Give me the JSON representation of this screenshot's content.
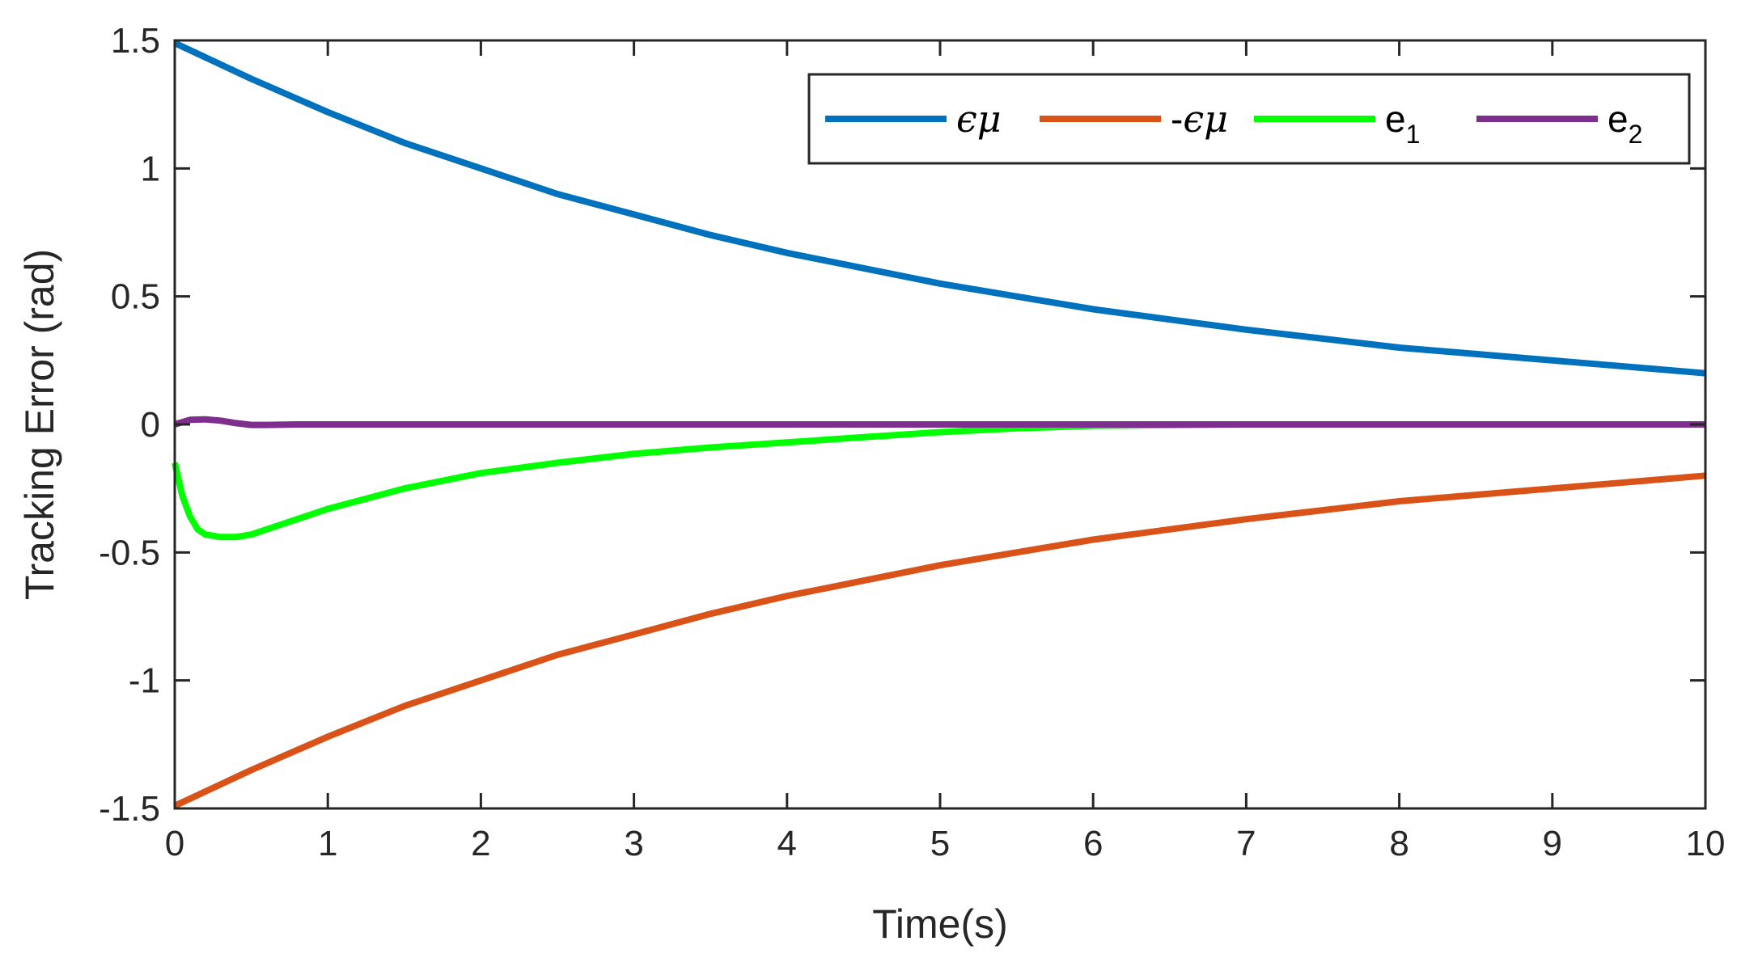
{
  "chart_data": {
    "type": "line",
    "title": "",
    "xlabel": "Time(s)",
    "ylabel": "Tracking Error (rad)",
    "xlim": [
      0,
      10
    ],
    "ylim": [
      -1.5,
      1.5
    ],
    "grid": false,
    "legend_position": "top-right",
    "x_ticks": [
      "0",
      "1",
      "2",
      "3",
      "4",
      "5",
      "6",
      "7",
      "8",
      "9",
      "10"
    ],
    "y_ticks": [
      "1.5",
      "1",
      "0.5",
      "0",
      "-0.5",
      "-1",
      "-1.5"
    ],
    "series": [
      {
        "name": "ϵμ",
        "label_symbol": "ϵμ",
        "label_prefix": "",
        "label_sub": "",
        "color": "#0072BD",
        "x": [
          0,
          0.5,
          1,
          1.5,
          2,
          2.5,
          3,
          3.5,
          4,
          4.5,
          5,
          5.5,
          6,
          6.5,
          7,
          7.5,
          8,
          8.5,
          9,
          9.5,
          10
        ],
        "y": [
          1.49,
          1.35,
          1.22,
          1.1,
          1.0,
          0.9,
          0.82,
          0.74,
          0.67,
          0.61,
          0.55,
          0.5,
          0.45,
          0.41,
          0.37,
          0.335,
          0.3,
          0.275,
          0.25,
          0.225,
          0.2
        ]
      },
      {
        "name": "-ϵμ",
        "label_symbol": "ϵμ",
        "label_prefix": "-",
        "label_sub": "",
        "color": "#D95319",
        "x": [
          0,
          0.5,
          1,
          1.5,
          2,
          2.5,
          3,
          3.5,
          4,
          4.5,
          5,
          5.5,
          6,
          6.5,
          7,
          7.5,
          8,
          8.5,
          9,
          9.5,
          10
        ],
        "y": [
          -1.49,
          -1.35,
          -1.22,
          -1.1,
          -1.0,
          -0.9,
          -0.82,
          -0.74,
          -0.67,
          -0.61,
          -0.55,
          -0.5,
          -0.45,
          -0.41,
          -0.37,
          -0.335,
          -0.3,
          -0.275,
          -0.25,
          -0.225,
          -0.2
        ]
      },
      {
        "name": "e1",
        "label_symbol": "",
        "label_prefix": "e",
        "label_sub": "1",
        "color": "#00FF00",
        "x": [
          0,
          0.05,
          0.1,
          0.15,
          0.2,
          0.3,
          0.4,
          0.5,
          0.7,
          1,
          1.5,
          2,
          2.5,
          3,
          3.5,
          4,
          4.5,
          5,
          5.5,
          6,
          7,
          8,
          9,
          10
        ],
        "y": [
          -0.15,
          -0.28,
          -0.36,
          -0.41,
          -0.43,
          -0.44,
          -0.44,
          -0.43,
          -0.39,
          -0.33,
          -0.25,
          -0.19,
          -0.15,
          -0.115,
          -0.09,
          -0.07,
          -0.05,
          -0.03,
          -0.015,
          -0.005,
          0.0,
          0.0,
          0.0,
          0.0
        ]
      },
      {
        "name": "e2",
        "label_symbol": "",
        "label_prefix": "e",
        "label_sub": "2",
        "color": "#7E2F8E",
        "x": [
          0,
          0.1,
          0.2,
          0.3,
          0.4,
          0.5,
          0.6,
          0.8,
          1,
          2,
          3,
          4,
          5,
          6,
          7,
          8,
          9,
          10
        ],
        "y": [
          0.0,
          0.018,
          0.02,
          0.015,
          0.005,
          -0.002,
          -0.002,
          0.0,
          0.0,
          0.0,
          0.0,
          0.0,
          0.0,
          0.0,
          0.0,
          0.0,
          0.0,
          0.0
        ]
      }
    ]
  }
}
